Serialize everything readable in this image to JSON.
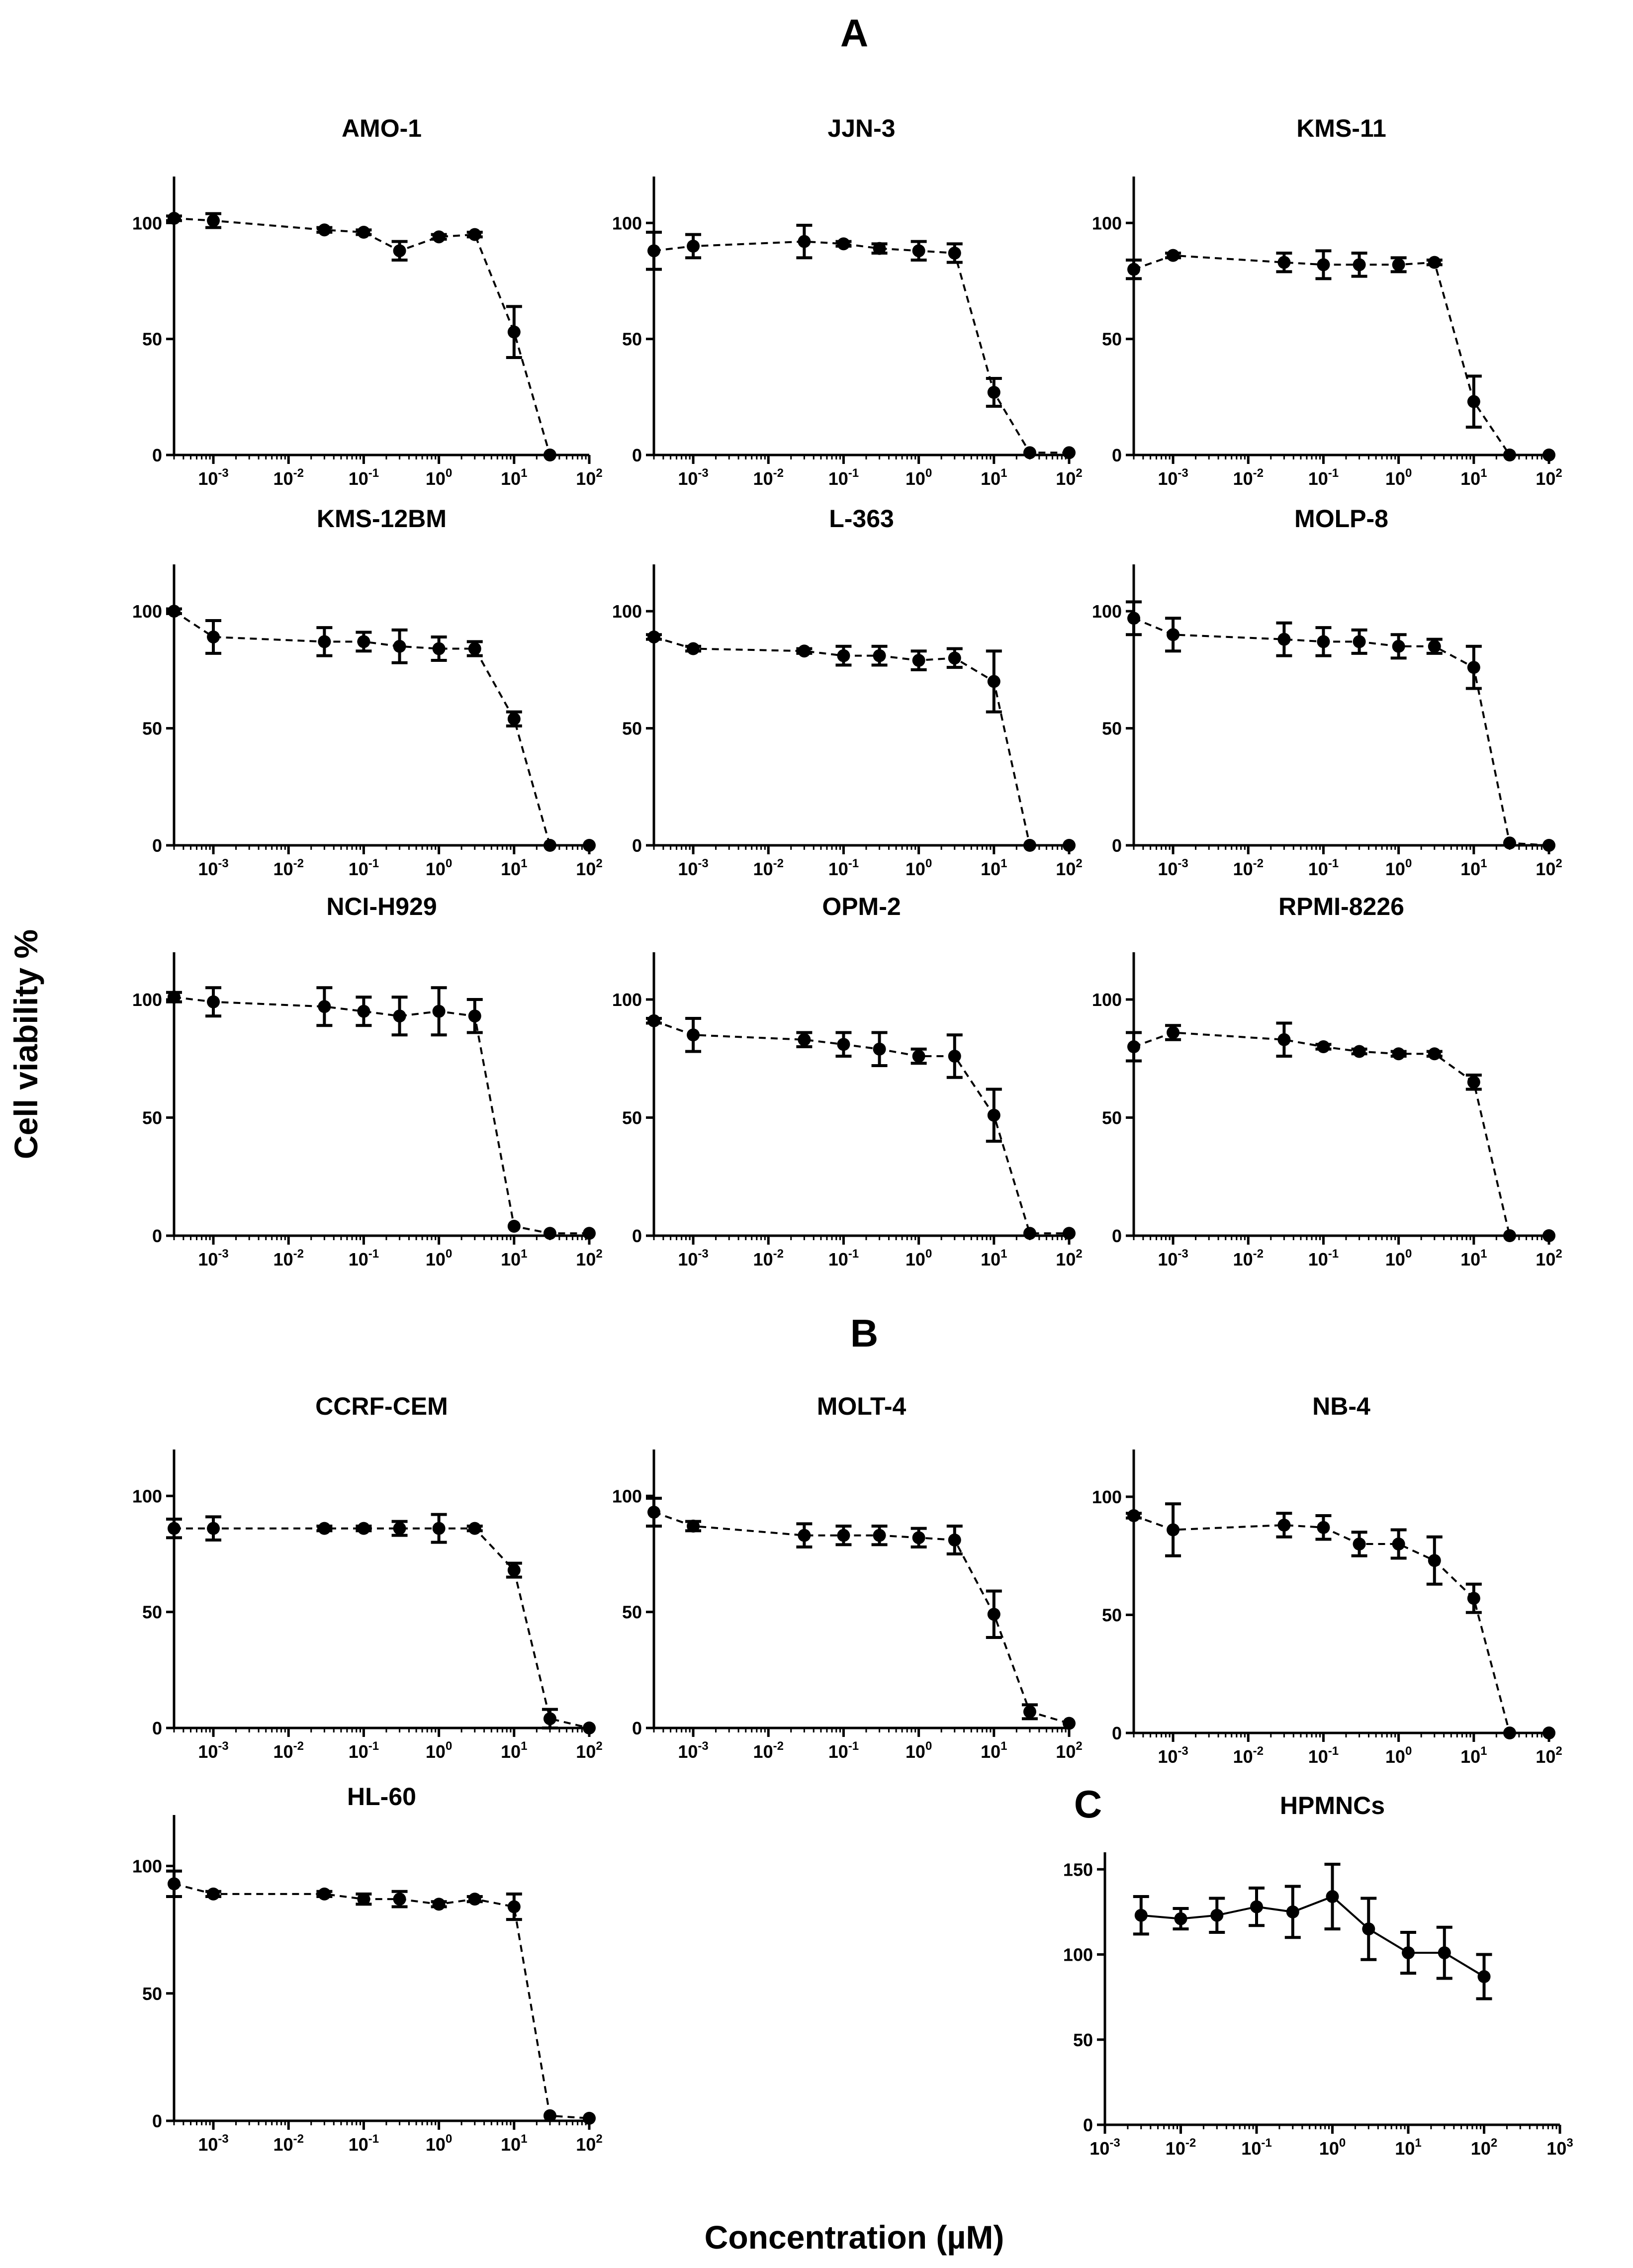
{
  "figure": {
    "panel_labels": [
      "A",
      "B",
      "C"
    ],
    "ylabel": "Cell viability %",
    "xlabel": "Concentration (µM)"
  },
  "chart_data": [
    {
      "type": "line",
      "title": "AMO-1",
      "panel": "A",
      "x": [
        0.0003,
        0.001,
        0.03,
        0.1,
        0.3,
        1,
        3,
        10,
        30
      ],
      "y": [
        102,
        101,
        97,
        96,
        88,
        94,
        95,
        53,
        0
      ],
      "err": [
        1,
        3,
        1,
        1,
        4,
        1,
        1,
        11,
        0
      ],
      "ylim": [
        0,
        120
      ],
      "yticks": [
        0,
        50,
        100
      ],
      "xscale": "log",
      "xlim": [
        0.0003,
        100
      ],
      "xticks": [
        "10^-3",
        "10^-2",
        "10^-1",
        "10^0",
        "10^1",
        "10^2"
      ],
      "line_style": "dashed"
    },
    {
      "type": "line",
      "title": "JJN-3",
      "panel": "A",
      "x": [
        0.0003,
        0.001,
        0.03,
        0.1,
        0.3,
        1,
        3,
        10,
        30,
        100
      ],
      "y": [
        88,
        90,
        92,
        91,
        89,
        88,
        87,
        27,
        1,
        1
      ],
      "err": [
        8,
        5,
        7,
        1,
        2,
        4,
        4,
        6,
        0,
        0
      ],
      "ylim": [
        0,
        120
      ],
      "yticks": [
        0,
        50,
        100
      ],
      "xscale": "log",
      "xlim": [
        0.0003,
        100
      ],
      "xticks": [
        "10^-3",
        "10^-2",
        "10^-1",
        "10^0",
        "10^1",
        "10^2"
      ],
      "line_style": "dashed"
    },
    {
      "type": "line",
      "title": "KMS-11",
      "panel": "A",
      "x": [
        0.0003,
        0.001,
        0.03,
        0.1,
        0.3,
        1,
        3,
        10,
        30,
        100
      ],
      "y": [
        80,
        86,
        83,
        82,
        82,
        82,
        83,
        23,
        0,
        0
      ],
      "err": [
        4,
        1,
        4,
        6,
        5,
        3,
        1,
        11,
        0,
        0
      ],
      "ylim": [
        0,
        120
      ],
      "yticks": [
        0,
        50,
        100
      ],
      "xscale": "log",
      "xlim": [
        0.0003,
        100
      ],
      "xticks": [
        "10^-3",
        "10^-2",
        "10^-1",
        "10^0",
        "10^1",
        "10^2"
      ],
      "line_style": "dashed"
    },
    {
      "type": "line",
      "title": "KMS-12BM",
      "panel": "A",
      "x": [
        0.0003,
        0.001,
        0.03,
        0.1,
        0.3,
        1,
        3,
        10,
        30,
        100
      ],
      "y": [
        100,
        89,
        87,
        87,
        85,
        84,
        84,
        54,
        0,
        0
      ],
      "err": [
        1,
        7,
        6,
        4,
        7,
        5,
        3,
        3,
        0,
        0
      ],
      "ylim": [
        0,
        120
      ],
      "yticks": [
        0,
        50,
        100
      ],
      "xscale": "log",
      "xlim": [
        0.0003,
        100
      ],
      "xticks": [
        "10^-3",
        "10^-2",
        "10^-1",
        "10^0",
        "10^1",
        "10^2"
      ],
      "line_style": "dashed"
    },
    {
      "type": "line",
      "title": "L-363",
      "panel": "A",
      "x": [
        0.0003,
        0.001,
        0.03,
        0.1,
        0.3,
        1,
        3,
        10,
        30,
        100
      ],
      "y": [
        89,
        84,
        83,
        81,
        81,
        79,
        80,
        70,
        0,
        0
      ],
      "err": [
        1,
        1,
        1,
        4,
        4,
        4,
        4,
        13,
        0,
        0
      ],
      "ylim": [
        0,
        120
      ],
      "yticks": [
        0,
        50,
        100
      ],
      "xscale": "log",
      "xlim": [
        0.0003,
        100
      ],
      "xticks": [
        "10^-3",
        "10^-2",
        "10^-1",
        "10^0",
        "10^1",
        "10^2"
      ],
      "line_style": "dashed"
    },
    {
      "type": "line",
      "title": "MOLP-8",
      "panel": "A",
      "x": [
        0.0003,
        0.001,
        0.03,
        0.1,
        0.3,
        1,
        3,
        10,
        30,
        100
      ],
      "y": [
        97,
        90,
        88,
        87,
        87,
        85,
        85,
        76,
        1,
        0
      ],
      "err": [
        7,
        7,
        7,
        6,
        5,
        5,
        3,
        9,
        0,
        0
      ],
      "ylim": [
        0,
        120
      ],
      "yticks": [
        0,
        50,
        100
      ],
      "xscale": "log",
      "xlim": [
        0.0003,
        100
      ],
      "xticks": [
        "10^-3",
        "10^-2",
        "10^-1",
        "10^0",
        "10^1",
        "10^2"
      ],
      "line_style": "dashed"
    },
    {
      "type": "line",
      "title": "NCI-H929",
      "panel": "A",
      "x": [
        0.0003,
        0.001,
        0.03,
        0.1,
        0.3,
        1,
        3,
        10,
        30,
        100
      ],
      "y": [
        101,
        99,
        97,
        95,
        93,
        95,
        93,
        4,
        1,
        1
      ],
      "err": [
        2,
        6,
        8,
        6,
        8,
        10,
        7,
        0,
        0,
        0
      ],
      "ylim": [
        0,
        120
      ],
      "yticks": [
        0,
        50,
        100
      ],
      "xscale": "log",
      "xlim": [
        0.0003,
        100
      ],
      "xticks": [
        "10^-3",
        "10^-2",
        "10^-1",
        "10^0",
        "10^1",
        "10^2"
      ],
      "line_style": "dashed"
    },
    {
      "type": "line",
      "title": "OPM-2",
      "panel": "A",
      "x": [
        0.0003,
        0.001,
        0.03,
        0.1,
        0.3,
        1,
        3,
        10,
        30,
        100
      ],
      "y": [
        91,
        85,
        83,
        81,
        79,
        76,
        76,
        51,
        1,
        1
      ],
      "err": [
        1,
        7,
        3,
        5,
        7,
        3,
        9,
        11,
        0,
        0
      ],
      "ylim": [
        0,
        120
      ],
      "yticks": [
        0,
        50,
        100
      ],
      "xscale": "log",
      "xlim": [
        0.0003,
        100
      ],
      "xticks": [
        "10^-3",
        "10^-2",
        "10^-1",
        "10^0",
        "10^1",
        "10^2"
      ],
      "line_style": "dashed"
    },
    {
      "type": "line",
      "title": "RPMI-8226",
      "panel": "A",
      "x": [
        0.0003,
        0.001,
        0.03,
        0.1,
        0.3,
        1,
        3,
        10,
        30,
        100
      ],
      "y": [
        80,
        86,
        83,
        80,
        78,
        77,
        77,
        65,
        0,
        0
      ],
      "err": [
        6,
        3,
        7,
        1,
        1,
        1,
        1,
        3,
        0,
        0
      ],
      "ylim": [
        0,
        120
      ],
      "yticks": [
        0,
        50,
        100
      ],
      "xscale": "log",
      "xlim": [
        0.0003,
        100
      ],
      "xticks": [
        "10^-3",
        "10^-2",
        "10^-1",
        "10^0",
        "10^1",
        "10^2"
      ],
      "line_style": "dashed"
    },
    {
      "type": "line",
      "title": "CCRF-CEM",
      "panel": "B",
      "x": [
        0.0003,
        0.001,
        0.03,
        0.1,
        0.3,
        1,
        3,
        10,
        30,
        100
      ],
      "y": [
        86,
        86,
        86,
        86,
        86,
        86,
        86,
        68,
        4,
        0
      ],
      "err": [
        4,
        5,
        1,
        1,
        3,
        6,
        1,
        3,
        4,
        0
      ],
      "ylim": [
        0,
        120
      ],
      "yticks": [
        0,
        50,
        100
      ],
      "xscale": "log",
      "xlim": [
        0.0003,
        100
      ],
      "xticks": [
        "10^-3",
        "10^-2",
        "10^-1",
        "10^0",
        "10^1",
        "10^2"
      ],
      "line_style": "dashed"
    },
    {
      "type": "line",
      "title": "MOLT-4",
      "panel": "B",
      "x": [
        0.0003,
        0.001,
        0.03,
        0.1,
        0.3,
        1,
        3,
        10,
        30,
        100
      ],
      "y": [
        93,
        87,
        83,
        83,
        83,
        82,
        81,
        49,
        7,
        2
      ],
      "err": [
        6,
        2,
        5,
        4,
        4,
        4,
        6,
        10,
        3,
        0
      ],
      "ylim": [
        0,
        120
      ],
      "yticks": [
        0,
        50,
        100
      ],
      "xscale": "log",
      "xlim": [
        0.0003,
        100
      ],
      "xticks": [
        "10^-3",
        "10^-2",
        "10^-1",
        "10^0",
        "10^1",
        "10^2"
      ],
      "line_style": "dashed"
    },
    {
      "type": "line",
      "title": "NB-4",
      "panel": "B",
      "x": [
        0.0003,
        0.001,
        0.03,
        0.1,
        0.3,
        1,
        3,
        10,
        30,
        100
      ],
      "y": [
        92,
        86,
        88,
        87,
        80,
        80,
        73,
        57,
        0,
        0
      ],
      "err": [
        1,
        11,
        5,
        5,
        5,
        6,
        10,
        6,
        0,
        0
      ],
      "ylim": [
        0,
        120
      ],
      "yticks": [
        0,
        50,
        100
      ],
      "xscale": "log",
      "xlim": [
        0.0003,
        100
      ],
      "xticks": [
        "10^-3",
        "10^-2",
        "10^-1",
        "10^0",
        "10^1",
        "10^2"
      ],
      "line_style": "dashed"
    },
    {
      "type": "line",
      "title": "HL-60",
      "panel": "B",
      "x": [
        0.0003,
        0.001,
        0.03,
        0.1,
        0.3,
        1,
        3,
        10,
        30,
        100
      ],
      "y": [
        93,
        89,
        89,
        87,
        87,
        85,
        87,
        84,
        2,
        1
      ],
      "err": [
        5,
        1,
        1,
        2,
        3,
        1,
        1,
        5,
        0,
        0
      ],
      "ylim": [
        0,
        120
      ],
      "yticks": [
        0,
        50,
        100
      ],
      "xscale": "log",
      "xlim": [
        0.0003,
        100
      ],
      "xticks": [
        "10^-3",
        "10^-2",
        "10^-1",
        "10^0",
        "10^1",
        "10^2"
      ],
      "line_style": "dashed"
    },
    {
      "type": "line",
      "title": "HPMNCs",
      "panel": "C",
      "x": [
        0.003,
        0.01,
        0.03,
        0.1,
        0.3,
        1,
        3,
        10,
        30,
        100
      ],
      "y": [
        123,
        121,
        123,
        128,
        125,
        134,
        115,
        101,
        101,
        87
      ],
      "err": [
        11,
        6,
        10,
        11,
        15,
        19,
        18,
        12,
        15,
        13
      ],
      "ylim": [
        0,
        160
      ],
      "yticks": [
        0,
        50,
        100,
        150
      ],
      "xscale": "log",
      "xlim": [
        0.001,
        1000
      ],
      "xticks": [
        "10^-3",
        "10^-2",
        "10^-1",
        "10^0",
        "10^1",
        "10^2",
        "10^3"
      ],
      "line_style": "solid"
    }
  ]
}
